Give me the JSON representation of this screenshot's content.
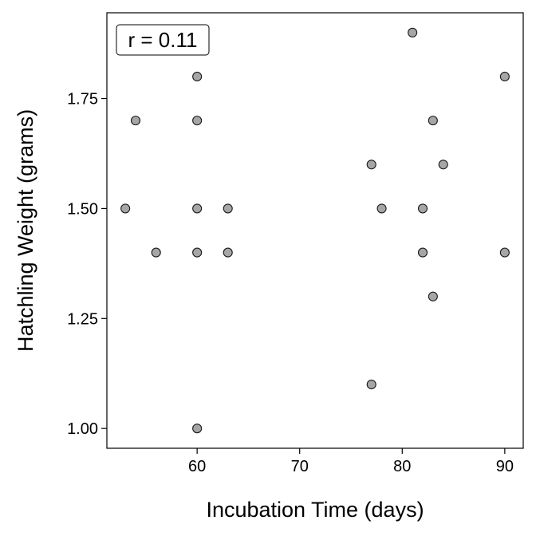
{
  "chart_data": {
    "type": "scatter",
    "title": "",
    "xlabel": "Incubation Time (days)",
    "ylabel": "Hatchling Weight (grams)",
    "xlim": [
      51.2,
      91.8
    ],
    "ylim": [
      0.955,
      1.945
    ],
    "x_ticks": [
      60,
      70,
      80,
      90
    ],
    "x_tick_labels": [
      "60",
      "70",
      "80",
      "90"
    ],
    "y_ticks": [
      1.0,
      1.25,
      1.5,
      1.75
    ],
    "y_tick_labels": [
      "1.00",
      "1.25",
      "1.50",
      "1.75"
    ],
    "grid": false,
    "annotation": "r = 0.11",
    "annotation_position": "top-left",
    "point_fill": "#a6a6a6",
    "point_stroke": "#1a1a1a",
    "points": [
      {
        "x": 53,
        "y": 1.5
      },
      {
        "x": 54,
        "y": 1.7
      },
      {
        "x": 56,
        "y": 1.4
      },
      {
        "x": 60,
        "y": 1.8
      },
      {
        "x": 60,
        "y": 1.7
      },
      {
        "x": 60,
        "y": 1.5
      },
      {
        "x": 60,
        "y": 1.4
      },
      {
        "x": 60,
        "y": 1.0
      },
      {
        "x": 63,
        "y": 1.5
      },
      {
        "x": 63,
        "y": 1.4
      },
      {
        "x": 77,
        "y": 1.6
      },
      {
        "x": 77,
        "y": 1.1
      },
      {
        "x": 78,
        "y": 1.5
      },
      {
        "x": 81,
        "y": 1.9
      },
      {
        "x": 82,
        "y": 1.5
      },
      {
        "x": 82,
        "y": 1.4
      },
      {
        "x": 83,
        "y": 1.7
      },
      {
        "x": 83,
        "y": 1.3
      },
      {
        "x": 84,
        "y": 1.6
      },
      {
        "x": 90,
        "y": 1.8
      },
      {
        "x": 90,
        "y": 1.4
      }
    ]
  }
}
